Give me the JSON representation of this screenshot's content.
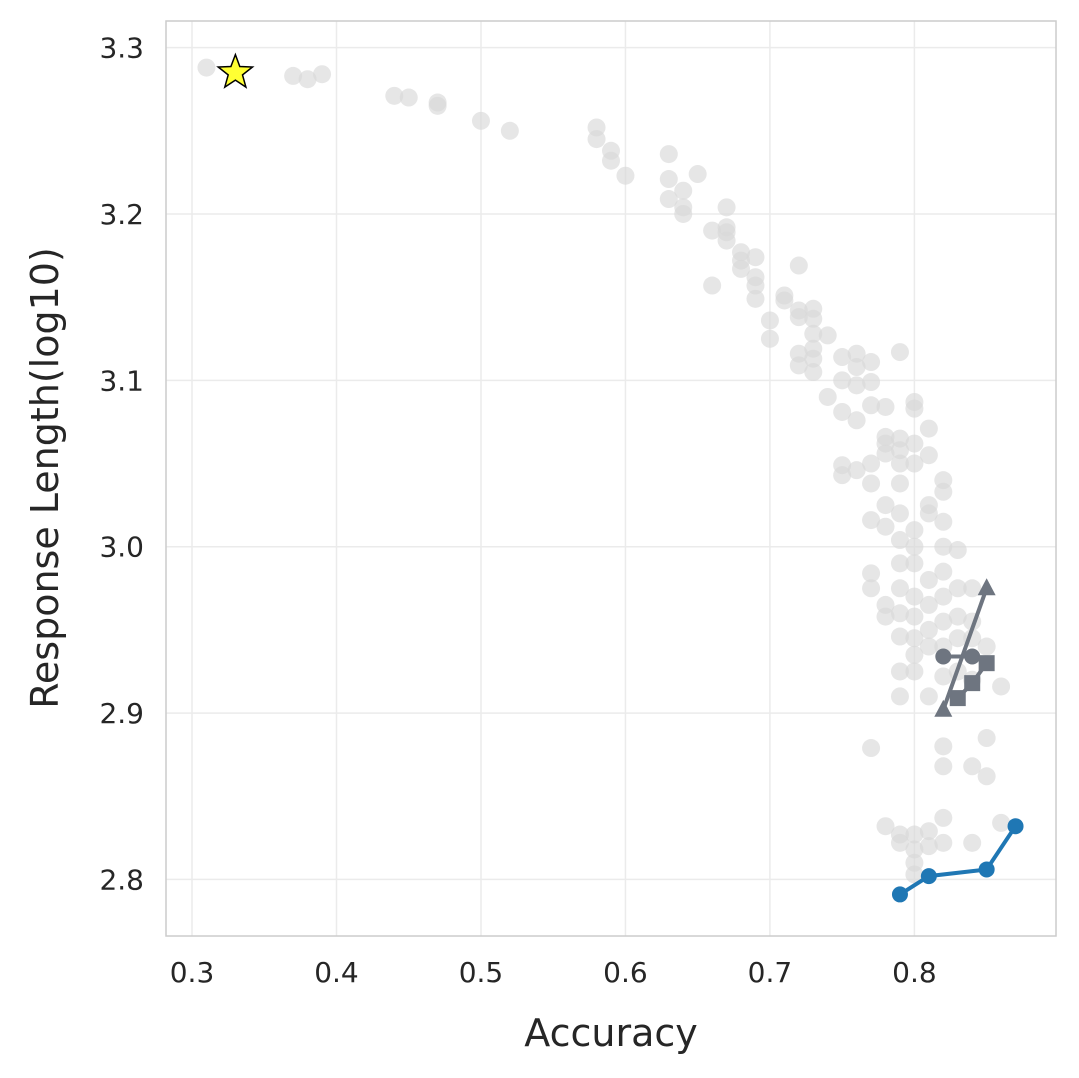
{
  "chart_data": {
    "type": "scatter",
    "title": "",
    "xlabel": "Accuracy",
    "ylabel": "Response Length(log10)",
    "xlim": [
      0.282,
      0.898
    ],
    "ylim": [
      2.766,
      3.316
    ],
    "xticks": [
      "0.3",
      "0.4",
      "0.5",
      "0.6",
      "0.7",
      "0.8"
    ],
    "yticks": [
      "2.8",
      "2.9",
      "3.0",
      "3.1",
      "3.2",
      "3.3"
    ],
    "grid": true,
    "legend": "none",
    "colors": {
      "background_points": "#d9d9d9",
      "blue_series": "#1f77b4",
      "gray_series": "#6e7580",
      "star": "#ffff33"
    },
    "series": [
      {
        "role": "background",
        "marker": "circle",
        "points": [
          [
            0.31,
            3.288
          ],
          [
            0.37,
            3.283
          ],
          [
            0.38,
            3.281
          ],
          [
            0.39,
            3.284
          ],
          [
            0.44,
            3.271
          ],
          [
            0.45,
            3.27
          ],
          [
            0.47,
            3.267
          ],
          [
            0.47,
            3.265
          ],
          [
            0.5,
            3.256
          ],
          [
            0.52,
            3.25
          ],
          [
            0.58,
            3.252
          ],
          [
            0.58,
            3.245
          ],
          [
            0.59,
            3.238
          ],
          [
            0.59,
            3.232
          ],
          [
            0.6,
            3.223
          ],
          [
            0.63,
            3.236
          ],
          [
            0.63,
            3.221
          ],
          [
            0.63,
            3.209
          ],
          [
            0.64,
            3.214
          ],
          [
            0.64,
            3.204
          ],
          [
            0.64,
            3.2
          ],
          [
            0.65,
            3.224
          ],
          [
            0.66,
            3.19
          ],
          [
            0.66,
            3.157
          ],
          [
            0.67,
            3.204
          ],
          [
            0.67,
            3.192
          ],
          [
            0.67,
            3.189
          ],
          [
            0.67,
            3.184
          ],
          [
            0.68,
            3.177
          ],
          [
            0.68,
            3.172
          ],
          [
            0.68,
            3.167
          ],
          [
            0.69,
            3.174
          ],
          [
            0.69,
            3.162
          ],
          [
            0.69,
            3.157
          ],
          [
            0.69,
            3.149
          ],
          [
            0.7,
            3.136
          ],
          [
            0.7,
            3.125
          ],
          [
            0.71,
            3.151
          ],
          [
            0.71,
            3.148
          ],
          [
            0.72,
            3.169
          ],
          [
            0.72,
            3.142
          ],
          [
            0.72,
            3.138
          ],
          [
            0.72,
            3.116
          ],
          [
            0.72,
            3.109
          ],
          [
            0.73,
            3.143
          ],
          [
            0.73,
            3.137
          ],
          [
            0.73,
            3.128
          ],
          [
            0.73,
            3.119
          ],
          [
            0.73,
            3.113
          ],
          [
            0.73,
            3.105
          ],
          [
            0.74,
            3.127
          ],
          [
            0.74,
            3.09
          ],
          [
            0.75,
            3.114
          ],
          [
            0.75,
            3.1
          ],
          [
            0.75,
            3.081
          ],
          [
            0.76,
            3.116
          ],
          [
            0.76,
            3.108
          ],
          [
            0.76,
            3.097
          ],
          [
            0.76,
            3.076
          ],
          [
            0.77,
            3.111
          ],
          [
            0.77,
            3.099
          ],
          [
            0.77,
            3.085
          ],
          [
            0.78,
            3.084
          ],
          [
            0.79,
            3.117
          ],
          [
            0.8,
            3.087
          ],
          [
            0.8,
            3.083
          ],
          [
            0.81,
            3.071
          ],
          [
            0.81,
            3.055
          ],
          [
            0.75,
            3.049
          ],
          [
            0.75,
            3.043
          ],
          [
            0.76,
            3.046
          ],
          [
            0.77,
            3.05
          ],
          [
            0.77,
            3.038
          ],
          [
            0.77,
            3.016
          ],
          [
            0.78,
            3.066
          ],
          [
            0.78,
            3.062
          ],
          [
            0.78,
            3.056
          ],
          [
            0.78,
            3.025
          ],
          [
            0.78,
            3.012
          ],
          [
            0.79,
            3.065
          ],
          [
            0.79,
            3.058
          ],
          [
            0.79,
            3.05
          ],
          [
            0.79,
            3.038
          ],
          [
            0.79,
            3.02
          ],
          [
            0.79,
            3.004
          ],
          [
            0.8,
            3.062
          ],
          [
            0.8,
            3.05
          ],
          [
            0.8,
            3.01
          ],
          [
            0.8,
            3.0
          ],
          [
            0.81,
            3.025
          ],
          [
            0.81,
            3.02
          ],
          [
            0.82,
            3.04
          ],
          [
            0.82,
            3.033
          ],
          [
            0.82,
            3.015
          ],
          [
            0.82,
            3.0
          ],
          [
            0.77,
            2.984
          ],
          [
            0.77,
            2.975
          ],
          [
            0.78,
            2.965
          ],
          [
            0.78,
            2.958
          ],
          [
            0.79,
            2.99
          ],
          [
            0.79,
            2.975
          ],
          [
            0.79,
            2.96
          ],
          [
            0.79,
            2.946
          ],
          [
            0.79,
            2.925
          ],
          [
            0.79,
            2.91
          ],
          [
            0.8,
            2.99
          ],
          [
            0.8,
            2.97
          ],
          [
            0.8,
            2.958
          ],
          [
            0.8,
            2.945
          ],
          [
            0.8,
            2.935
          ],
          [
            0.8,
            2.925
          ],
          [
            0.81,
            2.98
          ],
          [
            0.81,
            2.965
          ],
          [
            0.81,
            2.95
          ],
          [
            0.81,
            2.94
          ],
          [
            0.81,
            2.91
          ],
          [
            0.82,
            2.985
          ],
          [
            0.82,
            2.97
          ],
          [
            0.82,
            2.955
          ],
          [
            0.82,
            2.94
          ],
          [
            0.82,
            2.922
          ],
          [
            0.83,
            2.998
          ],
          [
            0.83,
            2.975
          ],
          [
            0.83,
            2.958
          ],
          [
            0.83,
            2.945
          ],
          [
            0.83,
            2.925
          ],
          [
            0.84,
            2.975
          ],
          [
            0.84,
            2.955
          ],
          [
            0.84,
            2.945
          ],
          [
            0.84,
            2.92
          ],
          [
            0.85,
            2.94
          ],
          [
            0.82,
            2.88
          ],
          [
            0.82,
            2.868
          ],
          [
            0.84,
            2.868
          ],
          [
            0.85,
            2.885
          ],
          [
            0.85,
            2.862
          ],
          [
            0.86,
            2.916
          ],
          [
            0.77,
            2.879
          ],
          [
            0.79,
            2.827
          ],
          [
            0.79,
            2.822
          ],
          [
            0.8,
            2.827
          ],
          [
            0.8,
            2.818
          ],
          [
            0.8,
            2.81
          ],
          [
            0.8,
            2.803
          ],
          [
            0.81,
            2.829
          ],
          [
            0.81,
            2.82
          ],
          [
            0.82,
            2.837
          ],
          [
            0.82,
            2.822
          ],
          [
            0.84,
            2.822
          ],
          [
            0.86,
            2.834
          ],
          [
            0.78,
            2.832
          ]
        ]
      },
      {
        "role": "highlight-blue",
        "marker": "circle",
        "line": true,
        "points": [
          [
            0.79,
            2.791
          ],
          [
            0.81,
            2.802
          ],
          [
            0.85,
            2.806
          ],
          [
            0.87,
            2.832
          ]
        ]
      },
      {
        "role": "highlight-gray-circle",
        "marker": "circle",
        "line": true,
        "points": [
          [
            0.82,
            2.934
          ],
          [
            0.84,
            2.934
          ]
        ]
      },
      {
        "role": "highlight-gray-square",
        "marker": "square",
        "line": true,
        "points": [
          [
            0.83,
            2.909
          ],
          [
            0.84,
            2.918
          ],
          [
            0.85,
            2.93
          ]
        ]
      },
      {
        "role": "highlight-gray-triangle",
        "marker": "triangle",
        "line": true,
        "points": [
          [
            0.82,
            2.902
          ],
          [
            0.85,
            2.975
          ]
        ]
      },
      {
        "role": "reference",
        "marker": "star",
        "points": [
          [
            0.33,
            3.285
          ]
        ]
      }
    ]
  }
}
